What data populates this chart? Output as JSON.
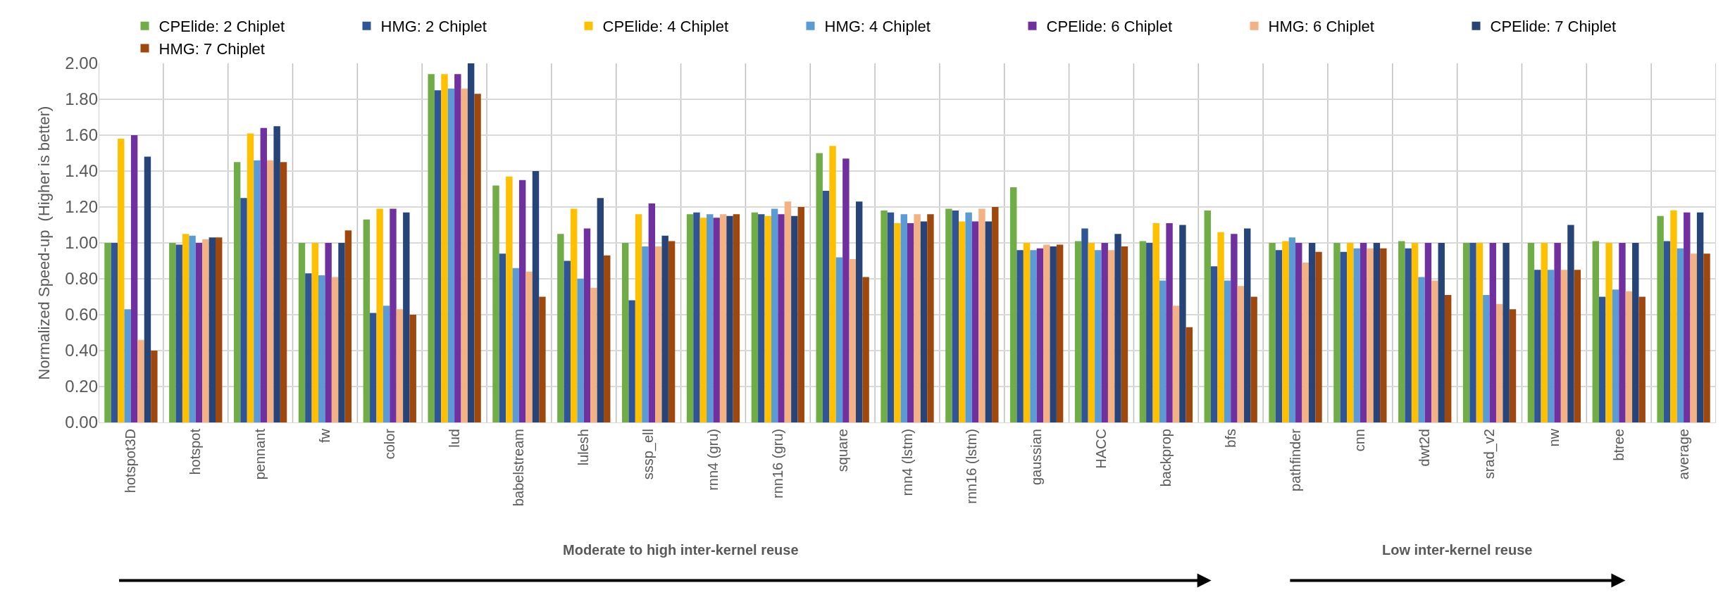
{
  "chart_data": {
    "type": "bar",
    "ylabel": "Normalized Speed-up  (Higher is better)",
    "categories": [
      "hotspot3D",
      "hotspot",
      "pennant",
      "fw",
      "color",
      "lud",
      "babelstream",
      "lulesh",
      "sssp_ell",
      "rnn4 (gru)",
      "rnn16 (gru)",
      "square",
      "rnn4 (lstm)",
      "rnn16 (lstm)",
      "gaussian",
      "HACC",
      "backprop",
      "bfs",
      "pathfinder",
      "cnn",
      "dwt2d",
      "srad_v2",
      "nw",
      "btree",
      "average"
    ],
    "series": [
      {
        "name": "CPElide: 2 Chiplet",
        "color": "#70ad47",
        "values": [
          1.0,
          1.0,
          1.45,
          1.0,
          1.13,
          1.94,
          1.32,
          1.05,
          1.0,
          1.16,
          1.17,
          1.5,
          1.18,
          1.19,
          1.31,
          1.01,
          1.01,
          1.18,
          1.0,
          1.0,
          1.01,
          1.0,
          1.0,
          1.01,
          1.15
        ]
      },
      {
        "name": "HMG: 2 Chiplet",
        "color": "#2f5597",
        "values": [
          1.0,
          0.99,
          1.25,
          0.83,
          0.61,
          1.85,
          0.94,
          0.9,
          0.68,
          1.17,
          1.16,
          1.29,
          1.17,
          1.18,
          0.96,
          1.08,
          1.0,
          0.87,
          0.96,
          0.95,
          0.97,
          1.0,
          0.85,
          0.7,
          1.01
        ]
      },
      {
        "name": "CPElide: 4 Chiplet",
        "color": "#ffc000",
        "values": [
          1.58,
          1.05,
          1.61,
          1.0,
          1.19,
          1.94,
          1.37,
          1.19,
          1.16,
          1.14,
          1.15,
          1.54,
          1.11,
          1.12,
          1.0,
          1.0,
          1.11,
          1.06,
          1.01,
          1.0,
          1.0,
          1.0,
          1.0,
          1.0,
          1.18
        ]
      },
      {
        "name": "HMG: 4 Chiplet",
        "color": "#5b9bd5",
        "values": [
          0.63,
          1.04,
          1.46,
          0.82,
          0.65,
          1.86,
          0.86,
          0.8,
          0.98,
          1.16,
          1.19,
          0.92,
          1.16,
          1.17,
          0.96,
          0.96,
          0.79,
          0.79,
          1.03,
          0.97,
          0.81,
          0.71,
          0.85,
          0.74,
          0.97
        ]
      },
      {
        "name": "CPElide: 6 Chiplet",
        "color": "#7030a0",
        "values": [
          1.6,
          1.0,
          1.64,
          1.0,
          1.19,
          1.94,
          1.35,
          1.08,
          1.22,
          1.14,
          1.16,
          1.47,
          1.11,
          1.12,
          0.97,
          1.0,
          1.11,
          1.05,
          1.0,
          1.0,
          1.0,
          1.0,
          1.0,
          1.0,
          1.17
        ]
      },
      {
        "name": "HMG: 6 Chiplet",
        "color": "#f4b183",
        "values": [
          0.46,
          1.02,
          1.46,
          0.81,
          0.63,
          1.86,
          0.84,
          0.75,
          0.98,
          1.16,
          1.23,
          0.91,
          1.16,
          1.19,
          0.99,
          0.96,
          0.65,
          0.76,
          0.89,
          0.97,
          0.79,
          0.66,
          0.85,
          0.73,
          0.94
        ]
      },
      {
        "name": "CPElide: 7 Chiplet",
        "color": "#264478",
        "values": [
          1.48,
          1.03,
          1.65,
          1.0,
          1.17,
          2.0,
          1.4,
          1.25,
          1.04,
          1.15,
          1.15,
          1.23,
          1.12,
          1.12,
          0.98,
          1.05,
          1.1,
          1.08,
          1.0,
          1.0,
          1.0,
          1.0,
          1.1,
          1.0,
          1.17
        ]
      },
      {
        "name": "HMG: 7 Chiplet",
        "color": "#9e480e",
        "values": [
          0.4,
          1.03,
          1.45,
          1.07,
          0.6,
          1.83,
          0.7,
          0.93,
          1.01,
          1.16,
          1.2,
          0.81,
          1.16,
          1.2,
          0.99,
          0.98,
          0.53,
          0.7,
          0.95,
          0.97,
          0.71,
          0.63,
          0.85,
          0.7,
          0.94
        ]
      }
    ],
    "ylim": [
      0,
      2
    ],
    "yticks": [
      {
        "value": 0,
        "label": "0.00"
      },
      {
        "value": 0.2,
        "label": "0.20"
      },
      {
        "value": 0.4,
        "label": "0.40"
      },
      {
        "value": 0.6,
        "label": "0.60"
      },
      {
        "value": 0.8,
        "label": "0.80"
      },
      {
        "value": 1.0,
        "label": "1.00"
      },
      {
        "value": 1.2,
        "label": "1.20"
      },
      {
        "value": 1.4,
        "label": "1.40"
      },
      {
        "value": 1.6,
        "label": "1.60"
      },
      {
        "value": 1.8,
        "label": "1.80"
      },
      {
        "value": 2.0,
        "label": "2.00"
      }
    ],
    "grid": true,
    "legend": "top",
    "annotations": [
      "Moderate to high inter-kernel reuse",
      "Low inter-kernel reuse"
    ]
  }
}
